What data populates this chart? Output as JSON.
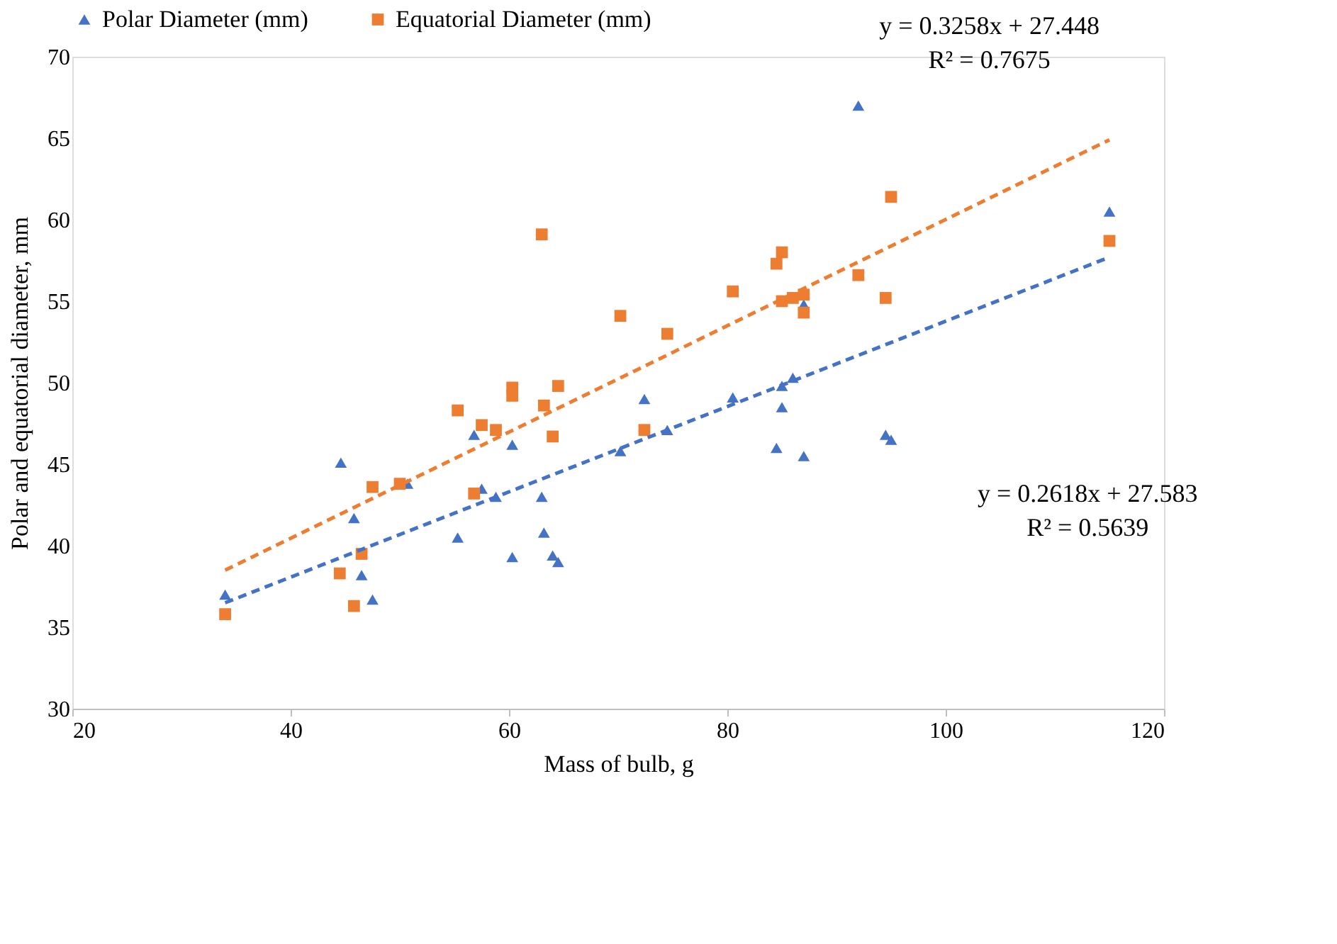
{
  "chart_data": {
    "type": "scatter",
    "xlabel": "Mass of bulb, g",
    "ylabel": "Polar and equatorial diameter, mm",
    "xlim": [
      20,
      120
    ],
    "xticks": [
      20,
      40,
      60,
      80,
      100,
      120
    ],
    "ylim": [
      30,
      70
    ],
    "yticks": [
      30,
      35,
      40,
      45,
      50,
      55,
      60,
      65,
      70
    ],
    "grid": false,
    "legend": "top",
    "annotations": [
      "y = 0.3258x + 27.448\nR² = 0.7675",
      "y = 0.2618x + 27.583\nR² = 0.5639"
    ],
    "series": [
      {
        "name": "Polar Diameter (mm)",
        "color": "#4472c4",
        "marker": "triangle",
        "x": [
          34,
          44.6,
          45.8,
          46.5,
          47.5,
          50.7,
          55.3,
          56.8,
          57.5,
          58.8,
          60.3,
          60.3,
          63,
          63.2,
          64,
          64.5,
          70.2,
          72.4,
          74.5,
          80.5,
          84.5,
          85,
          85,
          86,
          87,
          87,
          92,
          94.5,
          95,
          115
        ],
        "values": [
          37.0,
          45.1,
          41.7,
          38.2,
          36.7,
          43.8,
          40.5,
          46.8,
          43.5,
          43.0,
          46.2,
          39.3,
          43.0,
          40.8,
          39.4,
          39.0,
          45.8,
          49.0,
          47.1,
          49.1,
          46.0,
          48.5,
          49.8,
          50.3,
          45.5,
          54.8,
          67.0,
          46.8,
          46.5,
          60.5
        ]
      },
      {
        "name": "Equatorial Diameter (mm)",
        "color": "#ed7d31",
        "marker": "square",
        "x": [
          34,
          44.5,
          45.8,
          46.5,
          47.5,
          50,
          55.3,
          56.8,
          57.5,
          58.8,
          60.3,
          60.3,
          63,
          63.2,
          64,
          64.5,
          70.2,
          72.4,
          74.5,
          80.5,
          84.5,
          85,
          85,
          86,
          87,
          87,
          92,
          94.5,
          95,
          115
        ],
        "values": [
          35.8,
          38.3,
          36.3,
          39.5,
          43.6,
          43.8,
          48.3,
          43.2,
          47.4,
          47.1,
          49.7,
          49.2,
          59.1,
          48.6,
          46.7,
          49.8,
          54.1,
          47.1,
          53.0,
          55.6,
          57.3,
          58.0,
          55.0,
          55.2,
          55.4,
          54.3,
          56.6,
          55.2,
          61.4,
          58.7
        ]
      },
      {
        "type": "line",
        "color": "#4472c4",
        "line_style": "dashed",
        "x": [
          34,
          115
        ],
        "values": [
          36.5,
          57.7
        ]
      },
      {
        "type": "line",
        "color": "#ed7d31",
        "line_style": "dashed",
        "x": [
          34,
          115
        ],
        "values": [
          38.5,
          64.9
        ]
      }
    ]
  }
}
